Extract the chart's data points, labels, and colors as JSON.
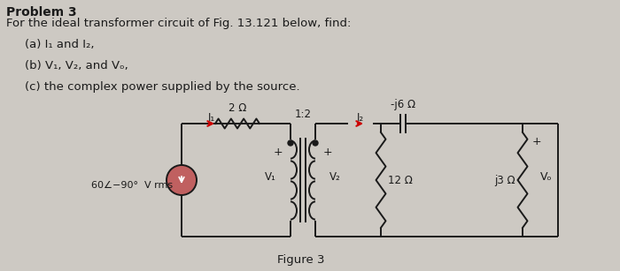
{
  "bg_color": "#cdc9c3",
  "text_color": "#1a1a1a",
  "title_bold": "Problem 3",
  "line1": "For the ideal transformer circuit of Fig. 13.121 below, find:",
  "item_a": "(a) I₁ and I₂,",
  "item_b": "(b) V₁, V₂, and Vₒ,",
  "item_c": "(c) the complex power supplied by the source.",
  "figure_label": "Figure 3",
  "source_label": "60∠−90°  V rms",
  "res1_label": "2 Ω",
  "transformer_ratio": "1:2",
  "cap_label": "-j6 Ω",
  "res2_label": "12 Ω",
  "res3_label": "j3 Ω",
  "I1_label": "I₁",
  "I2_label": "I₂",
  "V1_label": "V₁",
  "V2_label": "V₂",
  "Vo_label": "Vₒ",
  "arrow_color": "#cc0000",
  "line_color": "#1a1a1a",
  "source_color": "#c06060"
}
